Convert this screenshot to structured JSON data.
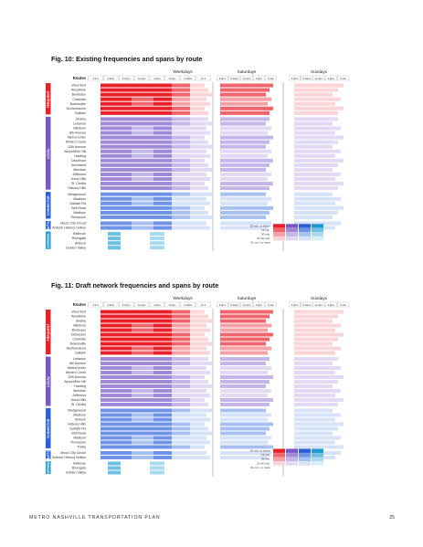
{
  "footer": {
    "left": "METRO NASHVILLE TRANSPORTATION PLAN",
    "page_number": "25"
  },
  "colors": {
    "frequent": [
      "#e8202a",
      "#f0646b",
      "#f5a0a5",
      "#fad4d6"
    ],
    "local": [
      "#7a58c8",
      "#a08ad8",
      "#c4b6e8",
      "#e2daf4"
    ],
    "connector": [
      "#2a5fd8",
      "#6e92e6",
      "#a8c0f0",
      "#d6e2f8"
    ],
    "express": [
      "#1e9ad0",
      "#6cc0e4",
      "#a8daee",
      "#d8eef8"
    ]
  },
  "fig10": {
    "title": "Fig. 10: Existing frequencies and spans by route",
    "routes_header": "Routes",
    "day_headers": [
      "Weekdays",
      "Saturdays",
      "Sundays"
    ],
    "weekday_slots": [
      "4-6 a",
      "6-9am",
      "9-12pm",
      "12-3pm",
      "3-6pm",
      "6-9pm",
      "9-12am",
      "12-1"
    ],
    "saturday_slots": [
      "6-9pm",
      "9-12pm",
      "12-3pm",
      "3-6pm",
      "6-12a"
    ],
    "sunday_slots": [
      "6-9pm",
      "9-12pm",
      "12-3pm",
      "3-6pm",
      "6-12a"
    ],
    "groups": [
      {
        "label": "FREQUENT",
        "routes": [
          "West End",
          "Woodbine",
          "Bordeaux",
          "Charlotte",
          "Nolensville",
          "Murfreesboro",
          "Gallatin"
        ]
      },
      {
        "label": "LOCAL",
        "routes": [
          "Shelby",
          "Lebanon",
          "Hillsboro",
          "8th Avenue",
          "MetroCenter",
          "White's Creek",
          "12th Avenue",
          "Airport/Elm Hill",
          "Harding",
          "Dickerson",
          "Northwest",
          "Meridian",
          "Jefferson",
          "Dona Hills",
          "St. Cecilia",
          "Hickory Hills"
        ]
      },
      {
        "label": "CONNECTOR",
        "routes": [
          "Wedgewood",
          "Madison",
          "Gallatin Rd",
          "Bell Road",
          "Madison",
          "Thompson"
        ]
      },
      {
        "label": "SHUTTLE",
        "routes": [
          "Music City Circuit",
          "Antioch Hickory Hollow"
        ]
      },
      {
        "label": "EXPRESS",
        "routes": [
          "Bellevue",
          "Rivergate",
          "Antioch",
          "Golden Valley"
        ]
      }
    ]
  },
  "fig11": {
    "title": "Fig. 11: Draft network frequencies and spans by route",
    "routes_header": "Routes",
    "day_headers": [
      "Weekdays",
      "Saturdays",
      "Sundays"
    ],
    "weekday_slots": [
      "4-6 a",
      "6-9am",
      "9-12pm",
      "12-3pm",
      "3-6pm",
      "6-9pm",
      "9-12am",
      "12-1"
    ],
    "saturday_slots": [
      "6-9pm",
      "9-12pm",
      "12-3pm",
      "3-6pm",
      "6-12a"
    ],
    "sunday_slots": [
      "6-9pm",
      "9-12pm",
      "12-3pm",
      "3-6pm",
      "6-12a"
    ],
    "groups": [
      {
        "label": "FREQUENT",
        "routes": [
          "West End",
          "Woodbine",
          "Shelby",
          "Hillsboro",
          "Bordeaux",
          "Dickerson",
          "Charlotte",
          "Nolensville",
          "Murfreesboro",
          "Gallatin"
        ]
      },
      {
        "label": "LOCAL",
        "routes": [
          "Lebanon",
          "8th Avenue",
          "MetroCenter",
          "White's Creek",
          "12th Avenue",
          "Airport/Elm Hill",
          "Harding",
          "Meridian",
          "Jefferson",
          "Dona Hills",
          "St. Cecilia"
        ]
      },
      {
        "label": "CONNECTOR",
        "routes": [
          "Wedgewood",
          "Madison",
          "Antioch",
          "Hickory Hills",
          "Gallatin Rd",
          "Bell Road",
          "Madison",
          "Thompson",
          "Trinity"
        ]
      },
      {
        "label": "SHUTTLE",
        "routes": [
          "Music City Circuit",
          "Antioch Hickory Hollow"
        ]
      },
      {
        "label": "EXPRESS",
        "routes": [
          "Bellevue",
          "Rivergate",
          "Golden Valley"
        ]
      }
    ]
  },
  "legend": {
    "items": [
      "15 min. or better",
      "15 min.",
      "30 min.",
      "31-60 min.",
      "61 min. or more"
    ]
  }
}
